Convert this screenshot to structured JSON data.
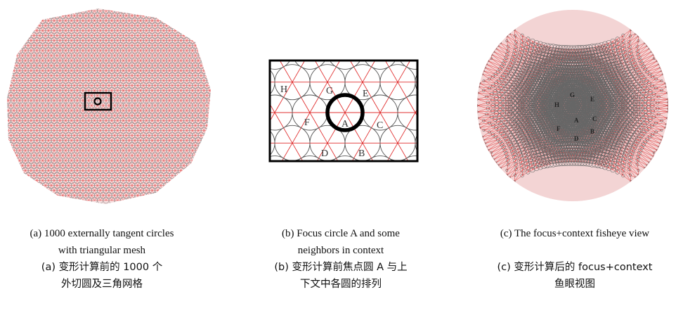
{
  "figures": {
    "a": {
      "caption_en_1": "(a) 1000 externally tangent circles",
      "caption_en_2": "with triangular mesh",
      "caption_zh_1": "(a) 变形计算前的 1000 个",
      "caption_zh_2": "外切圆及三角网格"
    },
    "b": {
      "caption_en_1": "(b) Focus circle A and some",
      "caption_en_2": "neighbors in context",
      "caption_zh_1": "(b) 变形计算前焦点圆 A 与上",
      "caption_zh_2": "下文中各圆的排列",
      "labels": [
        "H",
        "G",
        "E",
        "F",
        "A",
        "C",
        "D",
        "B"
      ]
    },
    "c": {
      "caption_en_1": "(c) The focus+context fisheye view",
      "caption_zh_1": "(c) 变形计算后的 focus+context",
      "caption_zh_2": "鱼眼视图",
      "labels": [
        "G",
        "H",
        "E",
        "A",
        "C",
        "F",
        "B",
        "D"
      ]
    }
  },
  "colors": {
    "circle_stroke": "#8a8a8a",
    "mesh_line": "#e03030",
    "fill": "#f6dede",
    "frame": "#000000"
  }
}
